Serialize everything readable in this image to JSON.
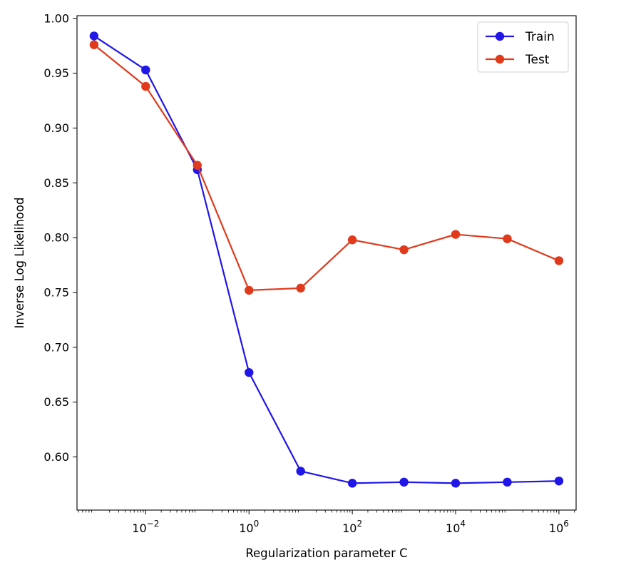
{
  "chart_data": {
    "type": "line",
    "title": "",
    "xlabel": "Regularization parameter C",
    "ylabel": "Inverse Log Likelihood",
    "xscale": "log",
    "x": [
      0.001,
      0.01,
      0.1,
      1,
      10,
      100,
      1000,
      10000,
      100000,
      1000000
    ],
    "xticks": [
      {
        "value": 0.01,
        "base": "10",
        "exp": "−2"
      },
      {
        "value": 1,
        "base": "10",
        "exp": "0"
      },
      {
        "value": 100,
        "base": "10",
        "exp": "2"
      },
      {
        "value": 10000,
        "base": "10",
        "exp": "4"
      },
      {
        "value": 1000000,
        "base": "10",
        "exp": "6"
      }
    ],
    "xlim": [
      0.000468,
      2150000
    ],
    "yticks": [
      "0.60",
      "0.65",
      "0.70",
      "0.75",
      "0.80",
      "0.85",
      "0.90",
      "0.95",
      "1.00"
    ],
    "ylim": [
      0.5515,
      1.0025
    ],
    "grid": false,
    "legend_position": "top-right",
    "series": [
      {
        "name": "Train",
        "color": "#2016e8",
        "values": [
          0.984,
          0.953,
          0.862,
          0.677,
          0.587,
          0.576,
          0.577,
          0.576,
          0.577,
          0.578
        ]
      },
      {
        "name": "Test",
        "color": "#e03a1c",
        "values": [
          0.976,
          0.938,
          0.866,
          0.752,
          0.754,
          0.798,
          0.789,
          0.803,
          0.799,
          0.779
        ]
      }
    ]
  }
}
